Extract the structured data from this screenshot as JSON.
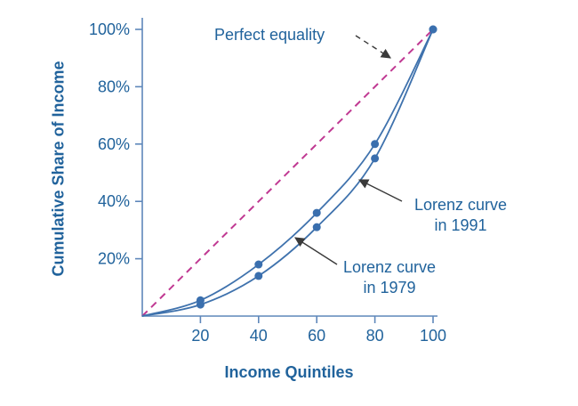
{
  "page": {
    "background": "#ffffff"
  },
  "axes": {
    "xlabel": "Income Quintiles",
    "ylabel": "Cumulative Share of Income"
  },
  "annotations": {
    "perfect_equality": {
      "label": "Perfect equality"
    },
    "lorenz_1991": {
      "line1": "Lorenz curve",
      "line2": "in 1991"
    },
    "lorenz_1979": {
      "line1": "Lorenz curve",
      "line2": "in 1979"
    }
  },
  "colors": {
    "axis": "#5e87ba",
    "text": "#21639c",
    "curve": "#3f72ad",
    "marker": "#3a6fae",
    "equality_line": "#c03992",
    "arrow": "#3a3a3a",
    "background": "#ffffff"
  },
  "chart_data": {
    "type": "line",
    "title": "",
    "xlabel": "Income Quintiles",
    "ylabel": "Cumulative Share of Income",
    "xlim": [
      0,
      100
    ],
    "ylim": [
      0,
      100
    ],
    "grid": false,
    "legend": "none (annotated with arrows)",
    "x_ticks": [
      20,
      40,
      60,
      80,
      100
    ],
    "x_tick_labels": [
      "20",
      "40",
      "60",
      "80",
      "100"
    ],
    "y_ticks": [
      20,
      40,
      60,
      80,
      100
    ],
    "y_tick_labels": [
      "20%",
      "40%",
      "60%",
      "80%",
      "100%"
    ],
    "series": [
      {
        "name": "Perfect equality",
        "style": "dashed",
        "markers": false,
        "x": [
          0,
          100
        ],
        "y": [
          0,
          100
        ]
      },
      {
        "name": "Lorenz curve in 1979",
        "style": "solid",
        "markers": true,
        "x": [
          0,
          20,
          40,
          60,
          80,
          100
        ],
        "y": [
          0,
          5.5,
          18,
          36,
          60,
          100
        ]
      },
      {
        "name": "Lorenz curve in 1991",
        "style": "solid",
        "markers": true,
        "x": [
          0,
          20,
          40,
          60,
          80,
          100
        ],
        "y": [
          0,
          4,
          14,
          31,
          55,
          100
        ]
      }
    ]
  }
}
